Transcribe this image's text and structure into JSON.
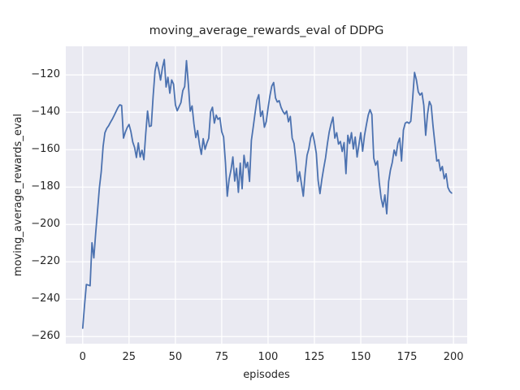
{
  "figure": {
    "background": "#ffffff"
  },
  "chart_data": {
    "type": "line",
    "title": "moving_average_rewards_eval of DDPG",
    "xlabel": "episodes",
    "ylabel": "moving_average_rewards_eval",
    "legend": "none",
    "grid": true,
    "x_ticks": [
      0,
      25,
      50,
      75,
      100,
      125,
      150,
      175,
      200
    ],
    "y_ticks": [
      -120,
      -140,
      -160,
      -180,
      -200,
      -220,
      -240,
      -260
    ],
    "xlim": [
      -9.1,
      207.4
    ],
    "ylim": [
      -263.8,
      -104.7
    ],
    "style": {
      "axes_background": "#eaeaf2",
      "grid_color": "#ffffff",
      "line_color": "#4c72b0",
      "text_color": "#262626",
      "line_width": 1.8
    },
    "series": [
      {
        "name": "moving_average_rewards_eval",
        "x_start": 0,
        "x_step": 1,
        "values": [
          -255.5,
          -243.5,
          -232.1,
          -232.4,
          -232.8,
          -209.8,
          -217.9,
          -205.0,
          -192.9,
          -180.5,
          -171.8,
          -158.3,
          -151.0,
          -148.6,
          -147.2,
          -145.3,
          -143.6,
          -141.6,
          -139.6,
          -137.5,
          -136.0,
          -136.4,
          -153.8,
          -150.7,
          -148.2,
          -146.5,
          -150.3,
          -155.9,
          -158.9,
          -164.2,
          -156.4,
          -163.9,
          -160.3,
          -165.4,
          -151.8,
          -139.3,
          -147.6,
          -147.2,
          -131.3,
          -118.0,
          -113.2,
          -117.0,
          -122.8,
          -116.2,
          -111.8,
          -126.5,
          -121.3,
          -129.8,
          -122.7,
          -124.9,
          -136.0,
          -139.2,
          -137.0,
          -134.8,
          -128.4,
          -126.2,
          -112.4,
          -125.0,
          -139.4,
          -136.6,
          -146.2,
          -153.5,
          -149.8,
          -157.2,
          -162.5,
          -154.1,
          -159.8,
          -156.5,
          -153.9,
          -139.8,
          -137.3,
          -145.8,
          -141.5,
          -143.8,
          -142.9,
          -150.4,
          -153.2,
          -167.0,
          -184.9,
          -175.8,
          -170.8,
          -163.9,
          -176.8,
          -170.0,
          -182.8,
          -167.2,
          -180.9,
          -163.0,
          -169.7,
          -166.8,
          -177.0,
          -155.0,
          -147.8,
          -140.2,
          -133.5,
          -130.6,
          -142.2,
          -139.3,
          -148.0,
          -145.0,
          -137.8,
          -131.2,
          -126.0,
          -124.1,
          -132.3,
          -134.5,
          -133.8,
          -137.3,
          -139.5,
          -141.0,
          -139.3,
          -145.1,
          -142.2,
          -153.8,
          -156.7,
          -165.5,
          -177.0,
          -171.8,
          -178.2,
          -184.9,
          -172.5,
          -163.0,
          -159.5,
          -153.6,
          -151.0,
          -155.8,
          -162.0,
          -176.4,
          -183.5,
          -176.0,
          -169.9,
          -164.3,
          -156.7,
          -150.5,
          -146.1,
          -142.6,
          -153.8,
          -150.9,
          -157.0,
          -155.6,
          -161.0,
          -156.2,
          -172.8,
          -152.3,
          -156.7,
          -150.9,
          -159.6,
          -153.2,
          -163.9,
          -157.5,
          -150.9,
          -160.8,
          -152.5,
          -146.8,
          -141.5,
          -138.6,
          -141.2,
          -164.5,
          -168.3,
          -166.1,
          -177.5,
          -186.0,
          -190.7,
          -184.2,
          -194.3,
          -177.2,
          -171.0,
          -166.8,
          -160.2,
          -163.2,
          -156.5,
          -153.8,
          -166.1,
          -149.5,
          -145.8,
          -145.2,
          -145.9,
          -144.8,
          -132.5,
          -118.7,
          -122.6,
          -129.1,
          -130.8,
          -129.6,
          -136.2,
          -152.3,
          -141.0,
          -134.2,
          -136.4,
          -147.5,
          -156.8,
          -166.1,
          -165.4,
          -171.2,
          -169.0,
          -175.5,
          -172.9,
          -180.2,
          -182.3,
          -183.2
        ]
      }
    ]
  }
}
